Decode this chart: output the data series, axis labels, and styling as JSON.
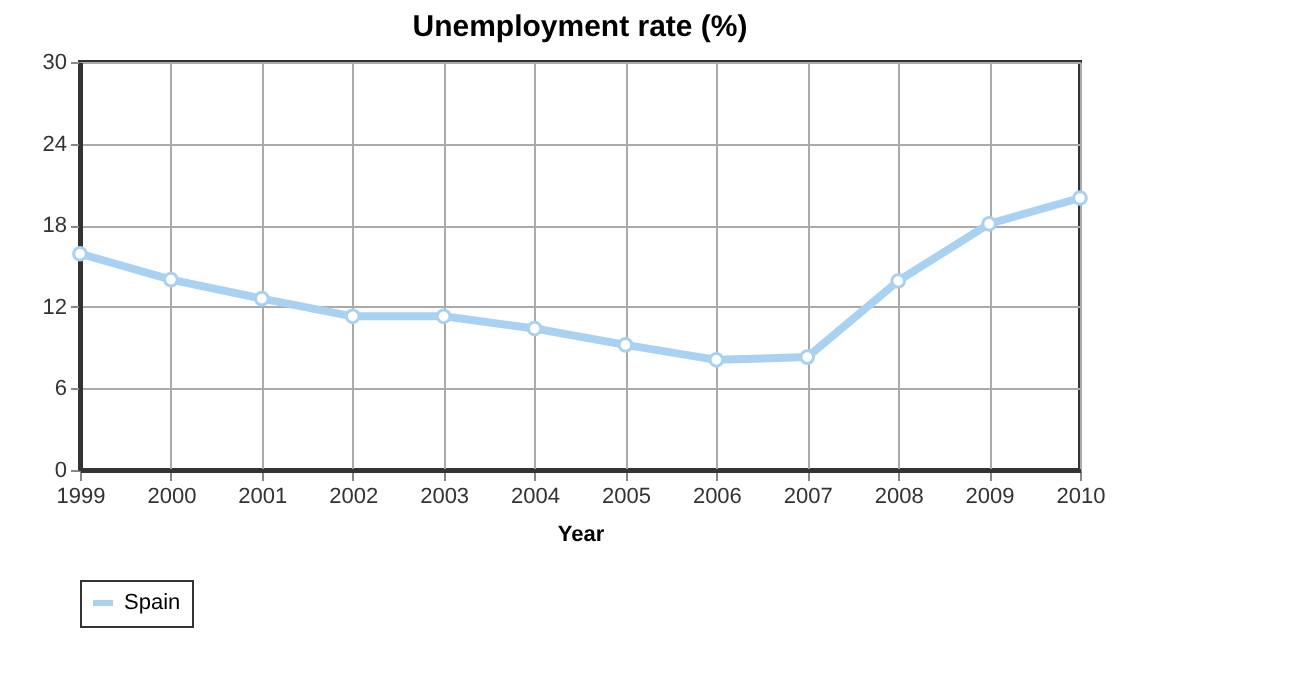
{
  "chart_data": {
    "type": "line",
    "title": "Unemployment rate (%)",
    "xlabel": "Year",
    "x": [
      1999,
      2000,
      2001,
      2002,
      2003,
      2004,
      2005,
      2006,
      2007,
      2008,
      2009,
      2010
    ],
    "series": [
      {
        "name": "Spain",
        "color": "#a9d2f2",
        "values": [
          15.9,
          14.0,
          12.6,
          11.3,
          11.3,
          10.4,
          9.2,
          8.1,
          8.3,
          13.9,
          18.1,
          20.0
        ]
      }
    ],
    "xlim": [
      1999,
      2010
    ],
    "xticks": [
      1999,
      2000,
      2001,
      2002,
      2003,
      2004,
      2005,
      2006,
      2007,
      2008,
      2009,
      2010
    ],
    "ylim": [
      0,
      30
    ],
    "yticks": [
      0,
      6,
      12,
      18,
      24,
      30
    ],
    "grid": true,
    "legend": "bottom",
    "marker": "circle",
    "line_style": "solid"
  }
}
